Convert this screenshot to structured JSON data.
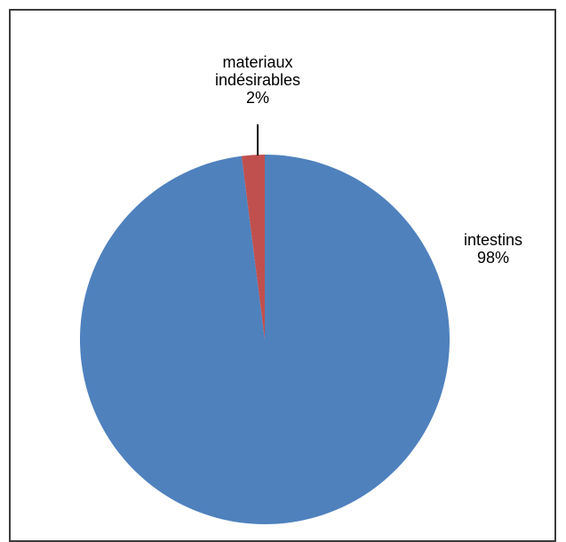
{
  "chart_data": {
    "type": "pie",
    "title": "",
    "slices": [
      {
        "label_lines": [
          "intestins"
        ],
        "percent_label": "98%",
        "value": 98,
        "color": "#4f81bd"
      },
      {
        "label_lines": [
          "materiaux",
          "indésirables"
        ],
        "percent_label": "2%",
        "value": 2,
        "color": "#c0504d"
      }
    ],
    "start": "top",
    "direction": "clockwise",
    "legend": "none",
    "labels": "outside"
  }
}
